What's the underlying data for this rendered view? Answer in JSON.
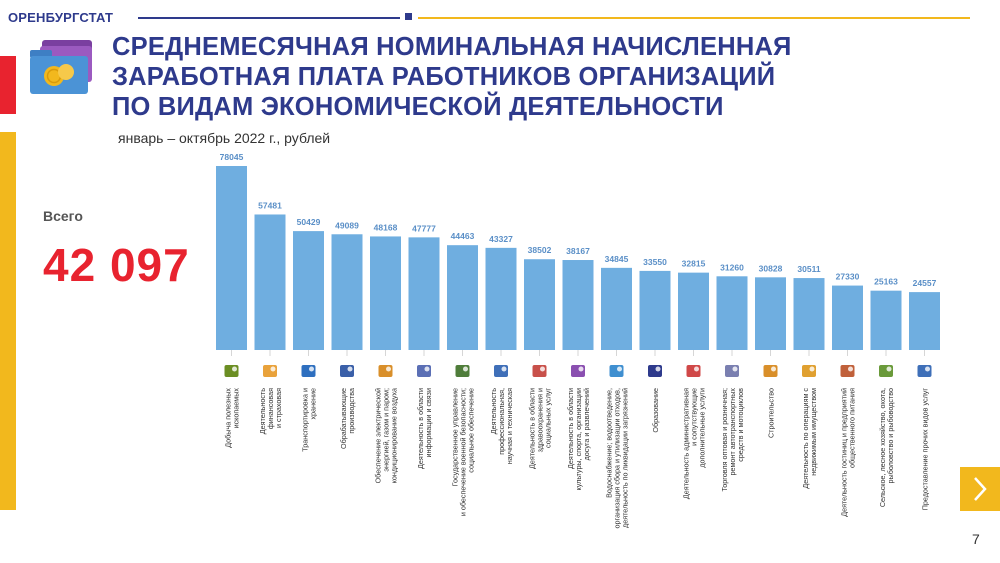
{
  "header": {
    "brand": "ОРЕНБУРГСТАТ",
    "title_lines": [
      "СРЕДНЕМЕСЯЧНАЯ НОМИНАЛЬНАЯ НАЧИСЛЕННАЯ",
      "ЗАРАБОТНАЯ ПЛАТА РАБОТНИКОВ ОРГАНИЗАЦИЙ",
      "ПО ВИДАМ ЭКОНОМИЧЕСКОЙ ДЕЯТЕЛЬНОСТИ"
    ],
    "subtitle": "январь – октябрь 2022 г., рублей"
  },
  "summary": {
    "label": "Всего",
    "value": "42 097"
  },
  "footer": {
    "page_number": "7"
  },
  "colors": {
    "bar": "#6faee0",
    "label": "#5a8fc7",
    "brand_blue": "#2e3a8c",
    "accent_red": "#e8232f",
    "accent_yellow": "#f2b81d"
  },
  "chart_data": {
    "type": "bar",
    "title": "",
    "xlabel": "",
    "ylabel": "",
    "ylim": [
      0,
      80000
    ],
    "grid": false,
    "legend": "none",
    "categories": [
      "Добыча полезных ископаемых",
      "Деятельность финансовая и страховая",
      "Транспортировка и хранение",
      "Обрабатывающие производства",
      "Обеспечение электрической энергией, газом и паром; кондиционирование воздуха",
      "Деятельность в области информации и связи",
      "Государственное управление и обеспечение военной безопасности; социальное обеспечение",
      "Деятельность профессиональная, научная и техническая",
      "Деятельность в области здравоохранения и социальных услуг",
      "Деятельность в области культуры, спорта, организации досуга и развлечений",
      "Водоснабжение; водоотведение, организация сбора и утилизации отходов, деятельность по ликвидации загрязнений",
      "Образование",
      "Деятельность административная и сопутствующие дополнительные услуги",
      "Торговля оптовая и розничная; ремонт автотранспортных средств и мотоциклов",
      "Строительство",
      "Деятельность по операциям с недвижимым имуществом",
      "Деятельность гостиниц и предприятий общественного питания",
      "Сельское, лесное хозяйство, охота, рыболовство и рыбоводство",
      "Предоставление прочих видов услуг"
    ],
    "label_lines": [
      [
        "Добыча полезных",
        "ископаемых"
      ],
      [
        "Деятельность",
        "финансовая",
        "и страховая"
      ],
      [
        "Транспортировка и",
        "хранение"
      ],
      [
        "Обрабатывающие",
        "производства"
      ],
      [
        "Обеспечение электрической",
        "энергией, газом и паром;",
        "кондиционирование воздуха"
      ],
      [
        "Деятельность в области",
        "информации и связи"
      ],
      [
        "Государственное управление",
        "и обеспечение военной безопасности;",
        "социальное обеспечение"
      ],
      [
        "Деятельность",
        "профессиональная,",
        "научная и техническая"
      ],
      [
        "Деятельность в области",
        "здравоохранения и",
        "социальных услуг"
      ],
      [
        "Деятельность в области",
        "культуры, спорта, организации",
        "досуга и развлечений"
      ],
      [
        "Водоснабжение; водоотведение,",
        "организация сбора и утилизации отходов,",
        "деятельность по ликвидации загрязнений"
      ],
      [
        "Образование"
      ],
      [
        "Деятельность административная",
        "и сопутствующие",
        "дополнительные услуги"
      ],
      [
        "Торговля оптовая и розничная;",
        "ремонт автотранспортных",
        "средств и мотоциклов"
      ],
      [
        "Строительство"
      ],
      [
        "Деятельность по операциям с",
        "недвижимым имуществом"
      ],
      [
        "Деятельность гостиниц и предприятий",
        "общественного питания"
      ],
      [
        "Сельское, лесное хозяйство, охота,",
        "рыболовство и рыбоводство"
      ],
      [
        "Предоставление прочих видов услуг"
      ]
    ],
    "icons": [
      "mining-icon",
      "finance-icon",
      "transport-icon",
      "manufacturing-icon",
      "energy-icon",
      "it-icon",
      "government-icon",
      "science-icon",
      "healthcare-icon",
      "culture-icon",
      "water-supply-icon",
      "education-icon",
      "administrative-icon",
      "trade-icon",
      "construction-icon",
      "real-estate-icon",
      "hotel-icon",
      "agriculture-icon",
      "services-icon"
    ],
    "values": [
      78045,
      57481,
      50429,
      49089,
      48168,
      47777,
      44463,
      43327,
      38502,
      38167,
      34845,
      33550,
      32815,
      31260,
      30828,
      30511,
      27330,
      25163,
      24557
    ]
  }
}
